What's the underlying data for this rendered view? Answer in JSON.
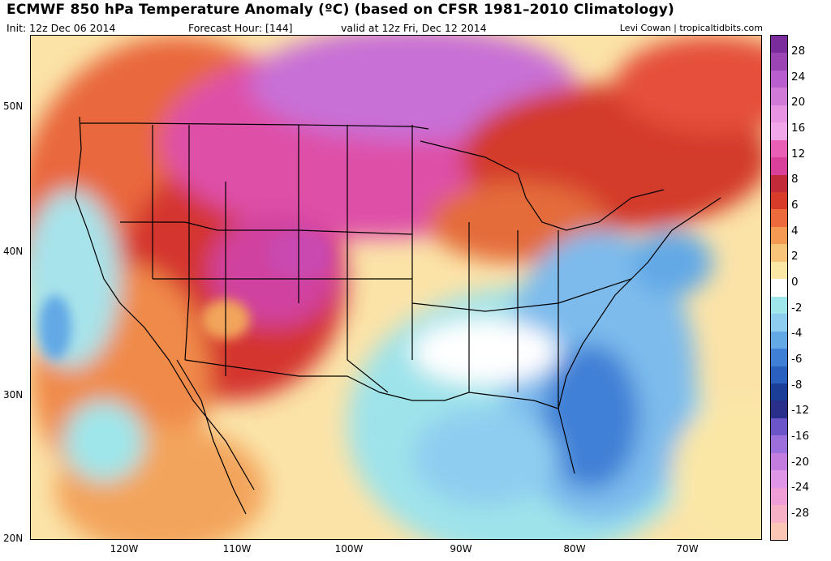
{
  "title": "ECMWF 850 hPa Temperature Anomaly (ºC) (based on CFSR 1981–2010 Climatology)",
  "init": "Init: 12z Dec 06 2014",
  "forecast_hour": "Forecast Hour: [144]",
  "valid": "valid at 12z Fri, Dec 12 2014",
  "credit": "Levi Cowan | tropicaltidbits.com",
  "lat_labels": [
    "50N",
    "40N",
    "30N",
    "20N"
  ],
  "lon_labels": [
    "120W",
    "110W",
    "100W",
    "90W",
    "80W",
    "70W"
  ],
  "colorbar": {
    "labels": [
      "28",
      "24",
      "20",
      "16",
      "12",
      "8",
      "6",
      "4",
      "2",
      "0",
      "-2",
      "-4",
      "-6",
      "-8",
      "-12",
      "-16",
      "-20",
      "-24",
      "-28"
    ],
    "colors": [
      "#7a2b9c",
      "#9b45b5",
      "#b95fcd",
      "#d27ad8",
      "#e794e3",
      "#f0a6e8",
      "#e95fb5",
      "#d9409a",
      "#c22a3a",
      "#d93b2b",
      "#ec6a3b",
      "#f59a52",
      "#f8c47a",
      "#fae7a6",
      "#ffffff",
      "#9fe6ea",
      "#8fcdf0",
      "#62a9e6",
      "#3f80d6",
      "#2a60bf",
      "#1b3f98",
      "#2b2f8c",
      "#6b55c8",
      "#9b6fdc",
      "#c27ddf",
      "#df96e6",
      "#ef9fd6",
      "#f7b1c6",
      "#fbc6b6"
    ]
  }
}
